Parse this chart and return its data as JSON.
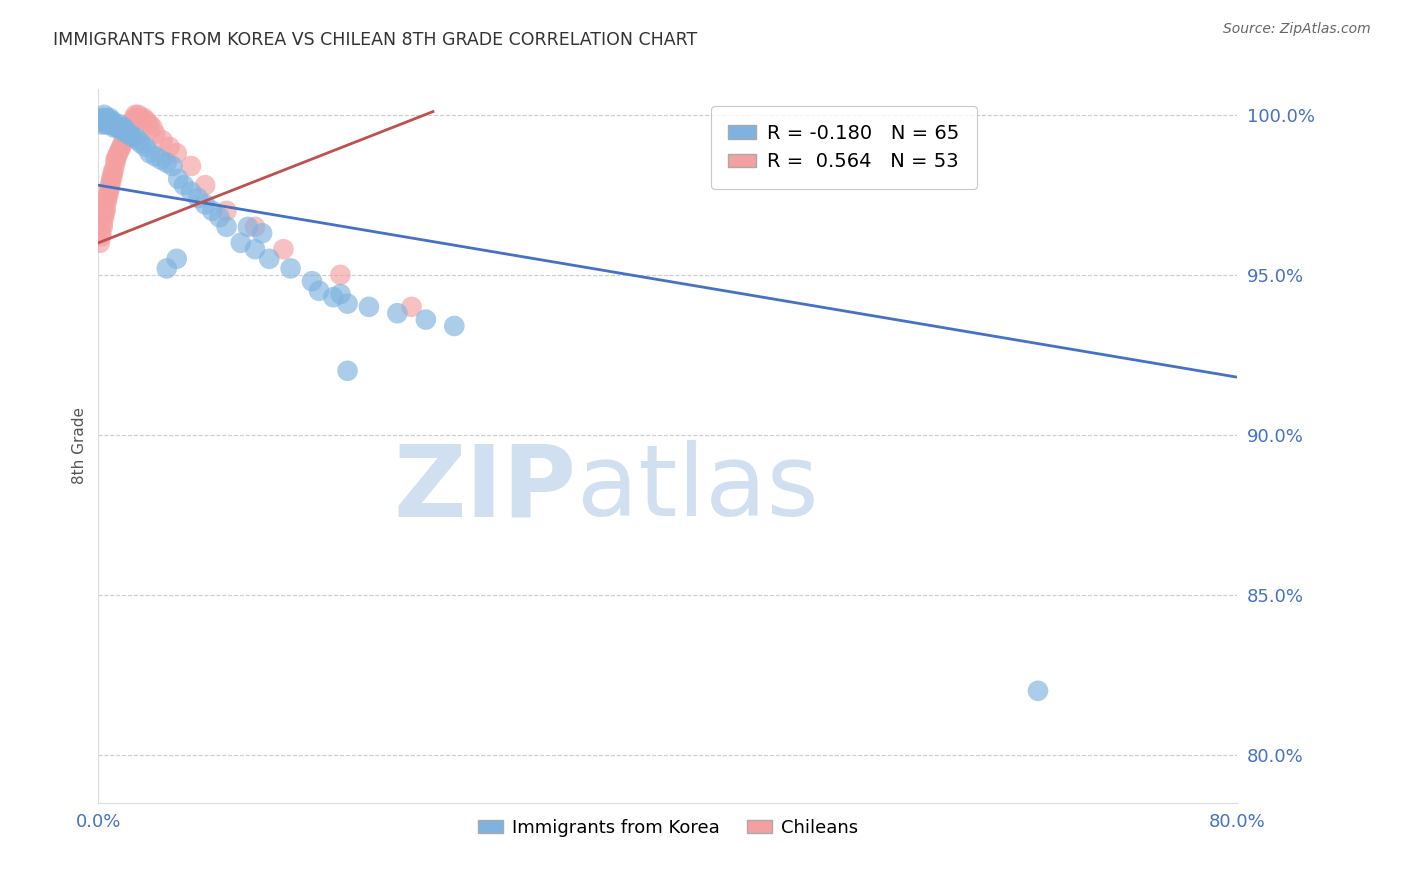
{
  "title": "IMMIGRANTS FROM KOREA VS CHILEAN 8TH GRADE CORRELATION CHART",
  "source": "Source: ZipAtlas.com",
  "ylabel": "8th Grade",
  "watermark_zip": "ZIP",
  "watermark_atlas": "atlas",
  "legend": {
    "korea_r": "-0.180",
    "korea_n": "65",
    "chile_r": "0.564",
    "chile_n": "53"
  },
  "x_min": 0.0,
  "x_max": 0.8,
  "y_min": 0.785,
  "y_max": 1.008,
  "yticks": [
    0.8,
    0.85,
    0.9,
    0.95,
    1.0
  ],
  "ytick_labels": [
    "80.0%",
    "85.0%",
    "90.0%",
    "95.0%",
    "100.0%"
  ],
  "korea_color": "#7EB3E0",
  "chile_color": "#F4A0A0",
  "trend_korea_color": "#4472C4",
  "trend_chile_color": "#C0504D",
  "korea_trend_x0": 0.0,
  "korea_trend_x1": 0.8,
  "korea_trend_y0": 0.978,
  "korea_trend_y1": 0.918,
  "chile_trend_x0": 0.0,
  "chile_trend_x1": 0.235,
  "chile_trend_y0": 0.96,
  "chile_trend_y1": 1.001,
  "korea_points_x": [
    0.001,
    0.002,
    0.003,
    0.003,
    0.004,
    0.004,
    0.005,
    0.005,
    0.006,
    0.006,
    0.007,
    0.007,
    0.008,
    0.008,
    0.009,
    0.01,
    0.01,
    0.011,
    0.012,
    0.013,
    0.014,
    0.015,
    0.016,
    0.017,
    0.018,
    0.019,
    0.02,
    0.022,
    0.024,
    0.026,
    0.028,
    0.03,
    0.033,
    0.036,
    0.04,
    0.044,
    0.048,
    0.052,
    0.056,
    0.06,
    0.065,
    0.07,
    0.075,
    0.08,
    0.085,
    0.09,
    0.1,
    0.11,
    0.12,
    0.135,
    0.15,
    0.17,
    0.19,
    0.21,
    0.23,
    0.25,
    0.105,
    0.115,
    0.155,
    0.165,
    0.175,
    0.048,
    0.055,
    0.175,
    0.66
  ],
  "korea_points_y": [
    0.998,
    0.997,
    0.999,
    0.998,
    1.0,
    0.999,
    0.998,
    0.997,
    0.998,
    0.999,
    0.998,
    0.997,
    0.998,
    0.999,
    0.997,
    0.998,
    0.997,
    0.996,
    0.997,
    0.996,
    0.996,
    0.997,
    0.996,
    0.995,
    0.996,
    0.995,
    0.994,
    0.994,
    0.993,
    0.993,
    0.992,
    0.991,
    0.99,
    0.988,
    0.987,
    0.986,
    0.985,
    0.984,
    0.98,
    0.978,
    0.976,
    0.974,
    0.972,
    0.97,
    0.968,
    0.965,
    0.96,
    0.958,
    0.955,
    0.952,
    0.948,
    0.944,
    0.94,
    0.938,
    0.936,
    0.934,
    0.965,
    0.963,
    0.945,
    0.943,
    0.941,
    0.952,
    0.955,
    0.92,
    0.82
  ],
  "chile_points_x": [
    0.001,
    0.002,
    0.002,
    0.003,
    0.003,
    0.004,
    0.004,
    0.005,
    0.005,
    0.006,
    0.006,
    0.007,
    0.007,
    0.008,
    0.008,
    0.009,
    0.009,
    0.01,
    0.01,
    0.011,
    0.012,
    0.012,
    0.013,
    0.014,
    0.015,
    0.016,
    0.017,
    0.018,
    0.019,
    0.02,
    0.021,
    0.022,
    0.023,
    0.024,
    0.025,
    0.026,
    0.028,
    0.03,
    0.032,
    0.034,
    0.036,
    0.038,
    0.04,
    0.045,
    0.05,
    0.055,
    0.065,
    0.075,
    0.09,
    0.11,
    0.13,
    0.17,
    0.22
  ],
  "chile_points_y": [
    0.96,
    0.962,
    0.963,
    0.965,
    0.966,
    0.968,
    0.969,
    0.97,
    0.971,
    0.973,
    0.974,
    0.975,
    0.976,
    0.977,
    0.978,
    0.979,
    0.98,
    0.981,
    0.982,
    0.983,
    0.985,
    0.986,
    0.987,
    0.988,
    0.989,
    0.99,
    0.991,
    0.992,
    0.993,
    0.994,
    0.995,
    0.996,
    0.997,
    0.998,
    0.999,
    1.0,
    1.0,
    0.999,
    0.999,
    0.998,
    0.997,
    0.996,
    0.994,
    0.992,
    0.99,
    0.988,
    0.984,
    0.978,
    0.97,
    0.965,
    0.958,
    0.95,
    0.94
  ],
  "background_color": "#FFFFFF",
  "grid_color": "#CCCCCC",
  "tick_color": "#4472C4",
  "title_color": "#333333",
  "source_color": "#666666",
  "watermark_color": "#D0E0F0"
}
